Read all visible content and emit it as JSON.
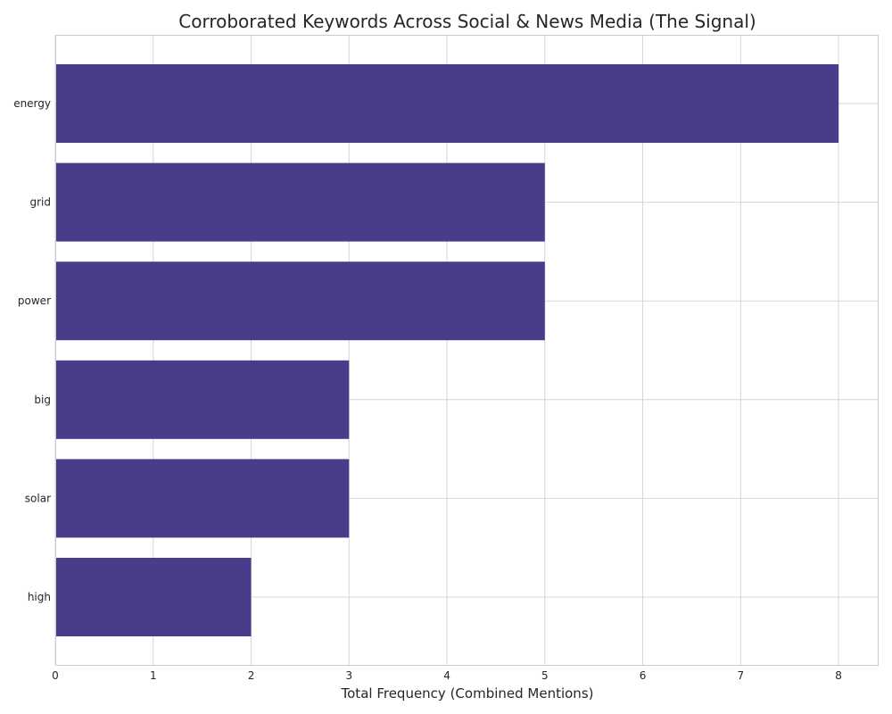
{
  "chart_data": {
    "type": "bar",
    "orientation": "horizontal",
    "title": "Corroborated Keywords Across Social & News Media (The Signal)",
    "xlabel": "Total Frequency (Combined Mentions)",
    "ylabel": "",
    "categories": [
      "energy",
      "grid",
      "power",
      "big",
      "solar",
      "high"
    ],
    "values": [
      8,
      5,
      5,
      3,
      3,
      2
    ],
    "xlim": [
      0,
      8.4
    ],
    "xticks": [
      0,
      1,
      2,
      3,
      4,
      5,
      6,
      7,
      8
    ],
    "grid": true,
    "bar_color": "#483d8b"
  }
}
